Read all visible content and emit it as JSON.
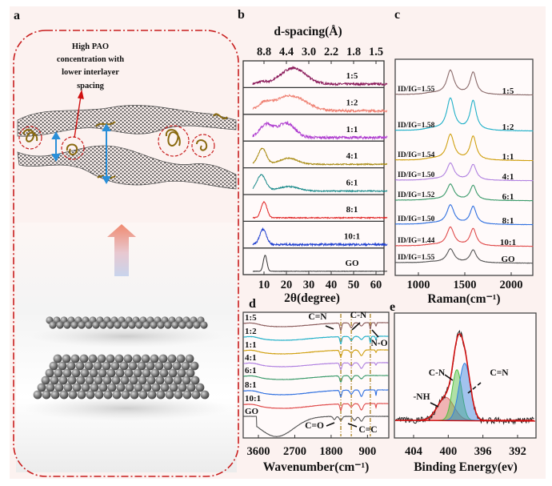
{
  "panel_labels": {
    "a": "a",
    "b": "b",
    "c": "c",
    "d": "d",
    "e": "e"
  },
  "panel_a": {
    "annotation": [
      "High PAO",
      "concentration with",
      "lower interlayer",
      "spacing"
    ],
    "colors": {
      "frame": "#c81e1e",
      "polymer": "#8a6a10",
      "arrow": "#2a8fd8"
    }
  },
  "chart_data": [
    {
      "type": "line",
      "panel": "b",
      "title": "d-spacing(Å)",
      "xlabel": "2θ(degree)",
      "ylabel": "",
      "xlim": [
        5,
        65
      ],
      "xticks": [
        10,
        20,
        30,
        40,
        50,
        60
      ],
      "xticklabels": [
        "10",
        "20",
        "30",
        "40",
        "50",
        "60"
      ],
      "top_ticklabels": [
        "8.8",
        "4.4",
        "3.0",
        "2.2",
        "1.8",
        "1.5"
      ],
      "layout": "stacked panels",
      "series": [
        {
          "name": "1:5",
          "color": "#8b1a5a",
          "noise": 1.2,
          "peaks": [
            [
              23,
              1.0,
              5.5
            ],
            [
              9,
              0.12,
              2
            ]
          ]
        },
        {
          "name": "1:2",
          "color": "#ef8072",
          "noise": 1.2,
          "peaks": [
            [
              21.5,
              0.95,
              7
            ],
            [
              10,
              0.35,
              2.5
            ]
          ]
        },
        {
          "name": "1:1",
          "color": "#b040d0",
          "noise": 1.4,
          "peaks": [
            [
              11,
              0.8,
              3
            ],
            [
              20,
              0.9,
              3.8
            ]
          ]
        },
        {
          "name": "4:1",
          "color": "#a88a10",
          "noise": 0.6,
          "peaks": [
            [
              9.2,
              1.0,
              1.8
            ],
            [
              21,
              0.38,
              4
            ]
          ]
        },
        {
          "name": "6:1",
          "color": "#1a8a8a",
          "noise": 0.6,
          "peaks": [
            [
              8.8,
              1.0,
              2
            ],
            [
              21,
              0.28,
              4.5
            ]
          ]
        },
        {
          "name": "8:1",
          "color": "#e02020",
          "noise": 0.5,
          "peaks": [
            [
              10,
              1.0,
              1.3
            ]
          ]
        },
        {
          "name": "10:1",
          "color": "#2040d0",
          "noise": 1.0,
          "peaks": [
            [
              9.6,
              0.95,
              1.5
            ]
          ]
        },
        {
          "name": "GO",
          "color": "#333333",
          "noise": 0.2,
          "peaks": [
            [
              10.5,
              1.0,
              0.8
            ]
          ]
        }
      ]
    },
    {
      "type": "line",
      "panel": "c",
      "xlabel": "Raman(cm⁻¹)",
      "ylabel": "",
      "xlim": [
        750,
        2240
      ],
      "xticks": [
        1000,
        1500,
        2000
      ],
      "xticklabels": [
        "1000",
        "1500",
        "2000"
      ],
      "bands": {
        "D": 1345,
        "G": 1590
      },
      "series": [
        {
          "name": "1:5",
          "ratio_label": "ID/IG=1.55",
          "color": "#8a6a6a",
          "intensity": 0.75
        },
        {
          "name": "1:2",
          "ratio_label": "ID/IG=1.58",
          "color": "#20b0c8",
          "intensity": 1.0
        },
        {
          "name": "1:1",
          "ratio_label": "ID/IG=1.54",
          "color": "#d0a010",
          "intensity": 0.8
        },
        {
          "name": "4:1",
          "ratio_label": "ID/IG=1.50",
          "color": "#b080e0",
          "intensity": 0.53
        },
        {
          "name": "6:1",
          "ratio_label": "ID/IG=1.52",
          "color": "#3a9a6a",
          "intensity": 0.5
        },
        {
          "name": "8:1",
          "ratio_label": "ID/IG=1.50",
          "color": "#3070e0",
          "intensity": 0.6
        },
        {
          "name": "10:1",
          "ratio_label": "ID/IG=1.44",
          "color": "#e04a4a",
          "intensity": 0.58
        },
        {
          "name": "GO",
          "ratio_label": "ID/IG=1.55",
          "color": "#555555",
          "intensity": 0.43
        }
      ]
    },
    {
      "type": "line",
      "panel": "d",
      "xlabel": "Wavenumber(cm⁻¹)",
      "ylabel": "",
      "xlim": [
        3976,
        372
      ],
      "xticks": [
        3600,
        2700,
        1800,
        900
      ],
      "xticklabels": [
        "3600",
        "2700",
        "1800",
        "900"
      ],
      "reference_lines": [
        1560,
        1300,
        830
      ],
      "annotations": [
        "C=N",
        "C-N",
        "N-O",
        "C=O",
        "C=C"
      ],
      "series": [
        {
          "name": "1:5",
          "color": "#8a5a5a",
          "oh": 5,
          "dips": [
            [
              1560,
              9,
              22
            ],
            [
              1300,
              6,
              35
            ],
            [
              1050,
              4,
              40
            ],
            [
              830,
              8,
              14
            ],
            [
              690,
              4,
              14
            ]
          ]
        },
        {
          "name": "1:2",
          "color": "#20b0c8",
          "oh": 5,
          "dips": [
            [
              1560,
              9,
              22
            ],
            [
              1300,
              5,
              35
            ],
            [
              1050,
              4,
              40
            ],
            [
              830,
              8,
              14
            ],
            [
              690,
              4,
              14
            ]
          ]
        },
        {
          "name": "1:1",
          "color": "#d0a010",
          "oh": 5,
          "dips": [
            [
              1560,
              8,
              25
            ],
            [
              1300,
              4,
              35
            ],
            [
              1050,
              7,
              45
            ],
            [
              690,
              3,
              14
            ]
          ]
        },
        {
          "name": "4:1",
          "color": "#b080e0",
          "oh": 5,
          "dips": [
            [
              1560,
              8,
              25
            ],
            [
              1300,
              4,
              35
            ],
            [
              1050,
              7,
              45
            ],
            [
              690,
              3,
              14
            ]
          ]
        },
        {
          "name": "6:1",
          "color": "#3a9a6a",
          "oh": 5,
          "dips": [
            [
              1560,
              8,
              25
            ],
            [
              1300,
              5,
              35
            ],
            [
              1050,
              4,
              40
            ]
          ]
        },
        {
          "name": "8:1",
          "color": "#3070e0",
          "oh": 6,
          "dips": [
            [
              1560,
              8,
              22
            ],
            [
              1300,
              5,
              35
            ],
            [
              1050,
              8,
              35
            ],
            [
              690,
              7,
              10
            ]
          ]
        },
        {
          "name": "10:1",
          "color": "#e04a4a",
          "oh": 6,
          "dips": [
            [
              1560,
              8,
              22
            ],
            [
              1300,
              4,
              35
            ],
            [
              1050,
              8,
              40
            ],
            [
              690,
              5,
              10
            ]
          ]
        },
        {
          "name": "GO",
          "color": "#555555",
          "oh": 24,
          "dips": [
            [
              1720,
              4,
              30
            ],
            [
              1560,
              5,
              35
            ],
            [
              1220,
              5,
              40
            ],
            [
              1050,
              6,
              40
            ]
          ]
        }
      ]
    },
    {
      "type": "line",
      "panel": "e",
      "xlabel": "Binding Energy(ev)",
      "ylabel": "",
      "xlim": [
        406.2,
        389.9
      ],
      "xticks": [
        404,
        400,
        396,
        392
      ],
      "xticklabels": [
        "404",
        "400",
        "396",
        "392"
      ],
      "raw_color": "#222222",
      "fit_color": "#d01010",
      "components": [
        {
          "name": "-NH",
          "center": 400.3,
          "amplitude": 0.25,
          "sigma": 0.95,
          "color": "#e06060"
        },
        {
          "name": "C-N",
          "center": 399.0,
          "amplitude": 0.55,
          "sigma": 0.55,
          "color": "#50c040"
        },
        {
          "name": "C=N",
          "center": 398.1,
          "amplitude": 0.62,
          "sigma": 0.65,
          "color": "#3080e0"
        }
      ]
    }
  ]
}
